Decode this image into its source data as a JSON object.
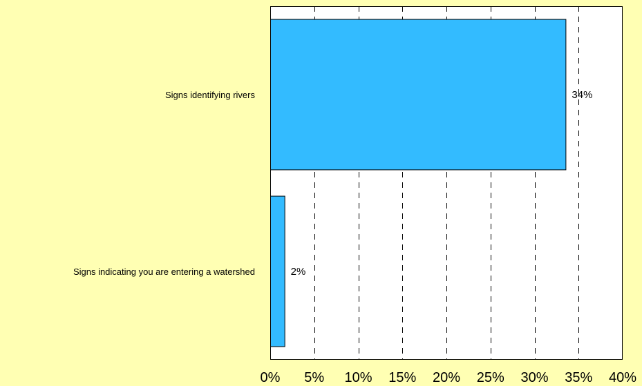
{
  "chart_data": {
    "type": "bar",
    "orientation": "horizontal",
    "categories": [
      "Signs identifying rivers",
      "Signs indicating you are entering a watershed"
    ],
    "values": [
      33.6,
      1.7
    ],
    "value_labels": [
      "34%",
      "2%"
    ],
    "xlim": [
      0,
      40
    ],
    "x_ticks": [
      0,
      5,
      10,
      15,
      20,
      25,
      30,
      35,
      40
    ],
    "x_tick_labels": [
      "0%",
      "5%",
      "10%",
      "15%",
      "20%",
      "25%",
      "30%",
      "35%",
      "40%"
    ],
    "title": "",
    "xlabel": "",
    "ylabel": "",
    "grid": "vertical dashed",
    "legend": "none",
    "colors": {
      "background": "#ffffb3",
      "plot_area": "#ffffff",
      "bar_fill": "#33bbff",
      "bar_stroke": "#000000",
      "grid": "#000000"
    }
  }
}
